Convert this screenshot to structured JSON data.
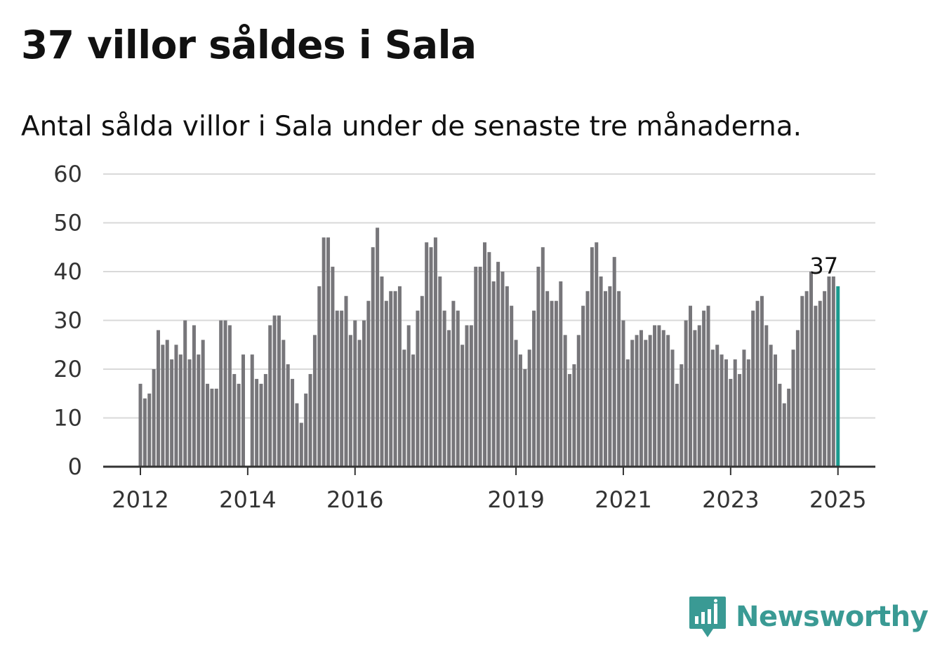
{
  "title": "37 villor såldes i Sala",
  "subtitle": "Antal sålda villor i Sala under de senaste tre månaderna.",
  "brand": {
    "name": "Newsworthy",
    "color": "#3a9a94",
    "icon": "bar-chart-speech-bubble-icon"
  },
  "colors": {
    "bar": "#77767a",
    "highlight": "#1a9a8e",
    "grid": "#d9d9d9",
    "axis": "#333333"
  },
  "chart_data": {
    "type": "bar",
    "title": "37 villor såldes i Sala",
    "subtitle": "Antal sålda villor i Sala under de senaste tre månaderna.",
    "xlabel": "",
    "ylabel": "",
    "ylim": [
      0,
      60
    ],
    "yticks": [
      0,
      10,
      20,
      30,
      40,
      50,
      60
    ],
    "xticks": [
      {
        "label": "2012",
        "index": 0
      },
      {
        "label": "2014",
        "index": 24
      },
      {
        "label": "2016",
        "index": 48
      },
      {
        "label": "2019",
        "index": 84
      },
      {
        "label": "2021",
        "index": 108
      },
      {
        "label": "2023",
        "index": 132
      },
      {
        "label": "2025",
        "index": 156
      }
    ],
    "grid": true,
    "start": "2012-01",
    "frequency": "monthly",
    "highlight_label": "37",
    "values": [
      17,
      14,
      15,
      20,
      28,
      25,
      26,
      22,
      25,
      23,
      30,
      22,
      29,
      23,
      26,
      17,
      16,
      16,
      30,
      30,
      29,
      19,
      17,
      23,
      0,
      23,
      18,
      17,
      19,
      29,
      31,
      31,
      26,
      21,
      18,
      13,
      9,
      15,
      19,
      27,
      37,
      47,
      47,
      41,
      32,
      32,
      35,
      27,
      30,
      26,
      30,
      34,
      45,
      49,
      39,
      34,
      36,
      36,
      37,
      24,
      29,
      23,
      32,
      35,
      46,
      45,
      47,
      39,
      32,
      28,
      34,
      32,
      25,
      29,
      29,
      41,
      41,
      46,
      44,
      38,
      42,
      40,
      37,
      33,
      26,
      23,
      20,
      24,
      32,
      41,
      45,
      36,
      34,
      34,
      38,
      27,
      19,
      21,
      27,
      33,
      36,
      45,
      46,
      39,
      36,
      37,
      43,
      36,
      30,
      22,
      26,
      27,
      28,
      26,
      27,
      29,
      29,
      28,
      27,
      24,
      17,
      21,
      30,
      33,
      28,
      29,
      32,
      33,
      24,
      25,
      23,
      22,
      18,
      22,
      19,
      24,
      22,
      32,
      34,
      35,
      29,
      25,
      23,
      17,
      13,
      16,
      24,
      28,
      35,
      36,
      40,
      33,
      34,
      36,
      39,
      39,
      37
    ]
  }
}
